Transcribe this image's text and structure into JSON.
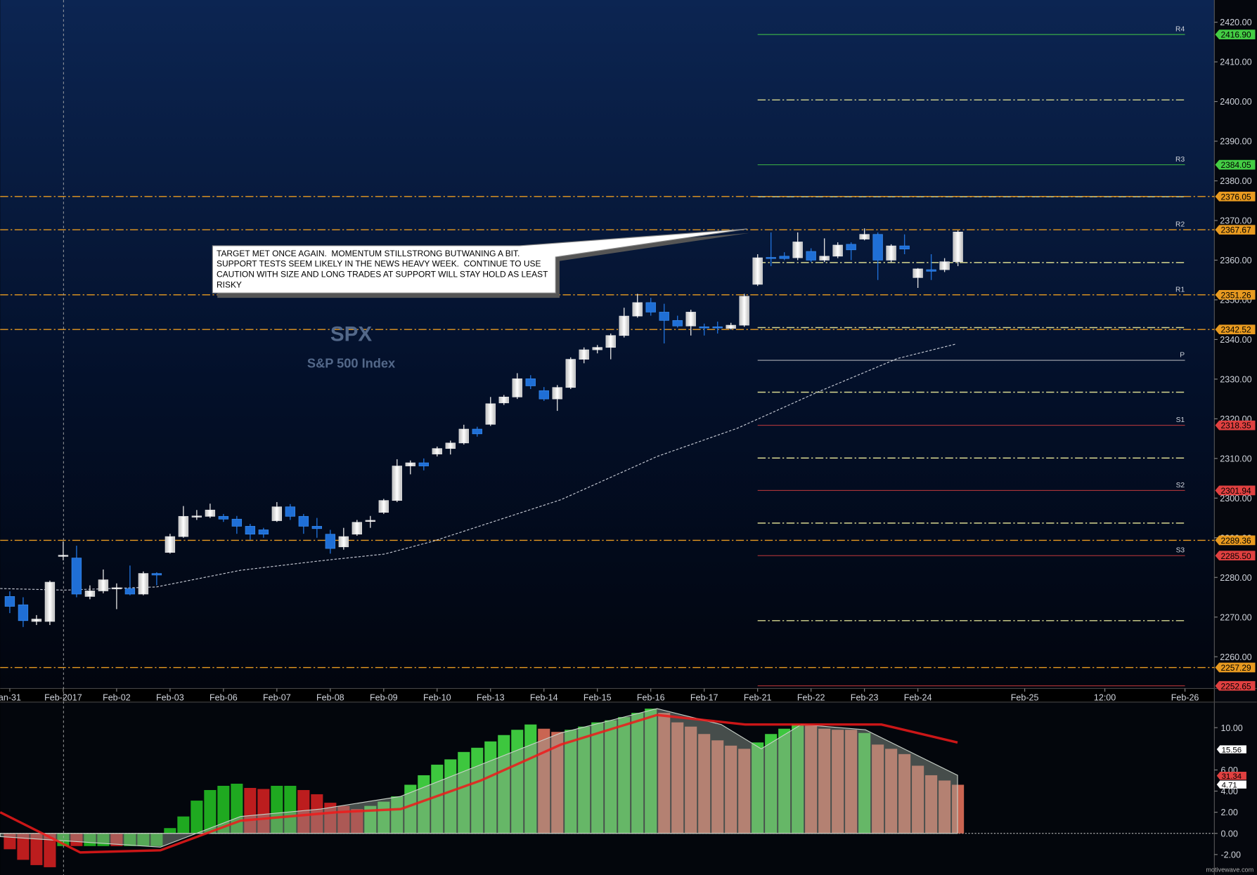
{
  "chart_data": [
    {
      "type": "candlestick",
      "title": "SPX",
      "subtitle": "S&P 500 Index",
      "annotation": [
        "TARGET MET ONCE AGAIN.  MOMENTUM STILLSTRONG BUTWANING A BIT.",
        "SUPPORT TESTS SEEM LIKELY IN THE NEWS HEAVY WEEK.  CONTINUE TO USE",
        "CAUTION WITH SIZE AND LONG TRADES AT SUPPORT WILL STAY HOLD AS LEAST",
        "RISKY"
      ],
      "watermark": "motivewave.com",
      "up_color": "#e6e6e6",
      "down_color": "#1f6fd6",
      "xlim": [
        -0.72,
        90.2
      ],
      "xticks": [
        {
          "value": 0,
          "label": "an-31"
        },
        {
          "value": 4,
          "label": "Feb-2017"
        },
        {
          "value": 8,
          "label": "Feb-02"
        },
        {
          "value": 12,
          "label": "Feb-03"
        },
        {
          "value": 16,
          "label": "Feb-06"
        },
        {
          "value": 20,
          "label": "Feb-07"
        },
        {
          "value": 24,
          "label": "Feb-08"
        },
        {
          "value": 28,
          "label": "Feb-09"
        },
        {
          "value": 32,
          "label": "Feb-10"
        },
        {
          "value": 36,
          "label": "Feb-13"
        },
        {
          "value": 40,
          "label": "Feb-14"
        },
        {
          "value": 44,
          "label": "Feb-15"
        },
        {
          "value": 48,
          "label": "Feb-16"
        },
        {
          "value": 52,
          "label": "Feb-17"
        },
        {
          "value": 56,
          "label": "Feb-21"
        },
        {
          "value": 60,
          "label": "Feb-22"
        },
        {
          "value": 64,
          "label": "Feb-23"
        },
        {
          "value": 68,
          "label": "Feb-24"
        },
        {
          "value": 76,
          "label": "Feb-25"
        },
        {
          "value": 82,
          "label": "12:00"
        },
        {
          "value": 88,
          "label": "Feb-26"
        }
      ],
      "ylim": [
        2252,
        2425.6
      ],
      "yticks": [
        {
          "value": 2260,
          "label": "2260.00"
        },
        {
          "value": 2270,
          "label": "2270.00"
        },
        {
          "value": 2280,
          "label": "2280.00"
        },
        {
          "value": 2290,
          "label": "2290.00"
        },
        {
          "value": 2300,
          "label": "2300.00"
        },
        {
          "value": 2310,
          "label": "2310.00"
        },
        {
          "value": 2320,
          "label": "2320.00"
        },
        {
          "value": 2330,
          "label": "2330.00"
        },
        {
          "value": 2340,
          "label": "2340.00"
        },
        {
          "value": 2350,
          "label": "2350.00"
        },
        {
          "value": 2360,
          "label": "2360.00"
        },
        {
          "value": 2370,
          "label": "2370.00"
        },
        {
          "value": 2380,
          "label": "2380.00"
        },
        {
          "value": 2390,
          "label": "2390.00"
        },
        {
          "value": 2400,
          "label": "2400.00"
        },
        {
          "value": 2410,
          "label": "2410.00"
        },
        {
          "value": 2420,
          "label": "2420.00"
        }
      ],
      "open": [
        2275.2,
        2273.1,
        2268.9,
        2268.9,
        2285.3,
        2284.9,
        2275.2,
        2276.6,
        2277.2,
        2277.2,
        2275.8,
        2281.0,
        2286.3,
        2290.3,
        2295.2,
        2295.4,
        2295.4,
        2294.7,
        2292.9,
        2292.0,
        2294.3,
        2297.8,
        2295.4,
        2292.9,
        2290.9,
        2287.7,
        2290.9,
        2294.2,
        2296.4,
        2299.4,
        2308.1,
        2308.9,
        2311.1,
        2312.5,
        2313.9,
        2317.4,
        2318.6,
        2324.0,
        2325.5,
        2330.1,
        2327.1,
        2325.0,
        2327.9,
        2335.0,
        2337.4,
        2338.0,
        2341.0,
        2345.9,
        2349.3,
        2346.9,
        2344.8,
        2343.4,
        2343.2,
        2343.2,
        2342.8,
        2343.6,
        2353.9,
        2360.7,
        2361.0,
        2360.6,
        2362.2,
        2360.0,
        2361.0,
        2364.0,
        2365.3,
        2366.5,
        2360.0,
        2363.6,
        2355.6,
        2357.6,
        2357.6,
        2359.6
      ],
      "high": [
        2276.5,
        2275.0,
        2270.5,
        2279.2,
        2289.1,
        2288.0,
        2278.0,
        2282.0,
        2278.5,
        2283.0,
        2281.5,
        2281.3,
        2291.0,
        2298.0,
        2297.0,
        2298.6,
        2296.0,
        2295.5,
        2293.5,
        2292.5,
        2299.0,
        2298.5,
        2296.0,
        2295.0,
        2292.0,
        2292.5,
        2294.5,
        2295.5,
        2299.8,
        2309.8,
        2309.5,
        2310.0,
        2313.0,
        2314.5,
        2318.5,
        2318.0,
        2325.5,
        2326.0,
        2331.5,
        2331.0,
        2328.0,
        2328.5,
        2335.5,
        2338.0,
        2338.6,
        2341.5,
        2348.0,
        2351.5,
        2350.5,
        2349.0,
        2346.0,
        2347.5,
        2344.0,
        2344.5,
        2344.2,
        2351.5,
        2361.5,
        2367.0,
        2362.0,
        2367.0,
        2363.0,
        2365.5,
        2364.5,
        2364.5,
        2368.0,
        2367.0,
        2364.0,
        2366.5,
        2358.0,
        2361.5,
        2360.5,
        2367.5
      ],
      "low": [
        2271.0,
        2267.5,
        2268.0,
        2268.0,
        2284.3,
        2275.0,
        2274.5,
        2276.0,
        2272.0,
        2275.5,
        2275.5,
        2278.0,
        2286.0,
        2290.0,
        2294.5,
        2295.0,
        2294.0,
        2291.0,
        2289.5,
        2290.0,
        2294.0,
        2294.5,
        2291.0,
        2290.0,
        2286.0,
        2287.0,
        2290.5,
        2292.5,
        2296.0,
        2299.0,
        2306.0,
        2307.0,
        2310.5,
        2311.0,
        2313.5,
        2315.5,
        2318.2,
        2323.5,
        2325.0,
        2327.5,
        2324.5,
        2322.0,
        2327.5,
        2334.0,
        2336.5,
        2335.0,
        2340.5,
        2345.5,
        2346.0,
        2339.0,
        2343.0,
        2341.0,
        2341.0,
        2341.5,
        2342.5,
        2343.2,
        2353.5,
        2358.5,
        2360.0,
        2360.0,
        2359.5,
        2359.5,
        2360.5,
        2360.0,
        2365.0,
        2355.0,
        2359.5,
        2361.5,
        2353.0,
        2355.0,
        2357.0,
        2358.5
      ],
      "close": [
        2272.7,
        2269.1,
        2269.5,
        2278.8,
        2285.6,
        2275.8,
        2276.6,
        2279.4,
        2277.4,
        2275.8,
        2281.0,
        2280.6,
        2290.3,
        2295.4,
        2295.5,
        2297.0,
        2294.7,
        2292.9,
        2290.9,
        2290.9,
        2297.8,
        2295.4,
        2292.9,
        2292.3,
        2287.3,
        2290.3,
        2293.9,
        2294.4,
        2299.4,
        2308.1,
        2308.9,
        2308.1,
        2312.5,
        2313.9,
        2317.4,
        2316.2,
        2323.8,
        2325.5,
        2330.1,
        2328.3,
        2325.0,
        2327.9,
        2335.0,
        2337.4,
        2338.0,
        2341.0,
        2345.9,
        2349.3,
        2346.9,
        2344.8,
        2343.4,
        2346.9,
        2343.0,
        2343.0,
        2343.6,
        2350.9,
        2360.6,
        2360.5,
        2360.4,
        2364.6,
        2360.0,
        2361.0,
        2363.8,
        2362.6,
        2366.5,
        2360.0,
        2363.6,
        2362.8,
        2357.8,
        2357.2,
        2359.6,
        2367.1
      ],
      "overlay": {
        "color": "#c8ccd6",
        "x": [
          -0.72,
          4.08,
          10.98,
          17.28,
          23.28,
          28.07,
          31.67,
          41.27,
          48.47,
          54.47,
          60.47,
          66.47,
          70.79
        ],
        "values": [
          2277.2,
          2276.8,
          2277.6,
          2281.8,
          2284.2,
          2285.9,
          2289.1,
          2299.6,
          2310.5,
          2317.6,
          2326.7,
          2335.2,
          2338.8
        ]
      },
      "levels": [
        {
          "name": "R4",
          "value": 2416.9,
          "label": "2416.90",
          "color": "#44cc44",
          "span": "pivot"
        },
        {
          "name": "R3",
          "value": 2384.05,
          "label": "2384.05",
          "color": "#44cc44",
          "span": "pivot"
        },
        {
          "value": 2376.05,
          "label": "2376.05",
          "color": "#e89a20",
          "span": "full"
        },
        {
          "name": "R2",
          "value": 2367.67,
          "label": "2367.67",
          "color": "#e89a20",
          "span": "full"
        },
        {
          "name": "R1",
          "value": 2351.26,
          "label": "2351.26",
          "color": "#e89a20",
          "span": "full"
        },
        {
          "value": 2342.52,
          "label": "2342.52",
          "color": "#e89a20",
          "span": "full"
        },
        {
          "name": "P",
          "value": 2334.75,
          "color": "#d8d8d8",
          "span": "pivot"
        },
        {
          "name": "S1",
          "value": 2318.35,
          "label": "2318.35",
          "color": "#e04040",
          "span": "pivot"
        },
        {
          "name": "S2",
          "value": 2301.94,
          "label": "2301.94",
          "color": "#e04040",
          "span": "pivot"
        },
        {
          "value": 2289.36,
          "label": "2289.36",
          "color": "#e89a20",
          "span": "full"
        },
        {
          "name": "S3",
          "value": 2285.5,
          "label": "2285.50",
          "color": "#e04040",
          "span": "pivot"
        },
        {
          "value": 2257.29,
          "label": "2257.29",
          "color": "#e89a20",
          "span": "full"
        },
        {
          "value": 2252.65,
          "label": "2252.65",
          "color": "#e04040",
          "span": "pivot"
        }
      ],
      "midlines": {
        "color": "#d8d890",
        "values": [
          2400.4,
          2376,
          2359.4,
          2343,
          2326.7,
          2310.1,
          2293.7,
          2269.1
        ]
      }
    },
    {
      "type": "bar",
      "ylim": [
        -3.33,
        12.42
      ],
      "yticks": [
        {
          "value": 10,
          "label": "10.00"
        },
        {
          "value": 6,
          "label": "6.00"
        },
        {
          "value": 4,
          "label": "4.00"
        },
        {
          "value": 2,
          "label": "2.00"
        },
        {
          "value": 0,
          "label": "0.00"
        },
        {
          "value": -2,
          "label": "-2.00"
        }
      ],
      "values": [
        -1.5,
        -2.5,
        -3.0,
        -3.2,
        -1.2,
        -1.2,
        -1.2,
        -1.2,
        -1.2,
        -1.2,
        -1.2,
        -1.2,
        0.5,
        1.6,
        3.1,
        4.1,
        4.5,
        4.7,
        4.3,
        4.2,
        4.5,
        4.5,
        4.1,
        3.7,
        2.9,
        2.6,
        2.3,
        2.6,
        3.0,
        3.5,
        4.6,
        5.5,
        6.5,
        7.0,
        7.7,
        8.1,
        8.7,
        9.3,
        9.8,
        10.3,
        9.9,
        9.6,
        9.8,
        10.1,
        10.5,
        10.7,
        11.0,
        11.4,
        11.8,
        11.4,
        10.5,
        10.1,
        9.4,
        8.8,
        8.3,
        8.0,
        8.6,
        9.4,
        9.9,
        10.3,
        10.2,
        9.9,
        9.8,
        9.8,
        9.5,
        8.4,
        8.0,
        7.5,
        6.4,
        5.5,
        5.0,
        4.6
      ],
      "colors": [
        "#d02020",
        "#d02020",
        "#d02020",
        "#d02020",
        "#22bb22",
        "#d02020",
        "#22bb22",
        "#22bb22",
        "#d02020",
        "#22bb22",
        "#22bb22",
        "#22bb22",
        "#22bb22",
        "#22bb22",
        "#22bb22",
        "#22bb22",
        "#22bb22",
        "#22bb22",
        "#d02020",
        "#d02020",
        "#22bb22",
        "#22bb22",
        "#d02020",
        "#d02020",
        "#d02020",
        "#d02020",
        "#d02020",
        "#44dd44",
        "#44dd44",
        "#44dd44",
        "#44dd44",
        "#44dd44",
        "#44dd44",
        "#44dd44",
        "#44dd44",
        "#44dd44",
        "#44dd44",
        "#44dd44",
        "#44dd44",
        "#44dd44",
        "#e0705a",
        "#e0705a",
        "#44dd44",
        "#44dd44",
        "#44dd44",
        "#44dd44",
        "#44dd44",
        "#44dd44",
        "#44dd44",
        "#e0705a",
        "#e0705a",
        "#e0705a",
        "#e0705a",
        "#e0705a",
        "#e0705a",
        "#e0705a",
        "#44dd44",
        "#44dd44",
        "#44dd44",
        "#44dd44",
        "#e0705a",
        "#e0705a",
        "#e0705a",
        "#e0705a",
        "#44dd44",
        "#e0705a",
        "#e0705a",
        "#e0705a",
        "#e0705a",
        "#e0705a",
        "#e0705a",
        "#e0705a"
      ],
      "smooth": {
        "color": "#9aa39a",
        "x": [
          -0.72,
          11.28,
          17.28,
          23.28,
          29.27,
          35.27,
          41.27,
          48.47,
          53.27,
          56.27,
          59.27,
          64.07,
          70.97
        ],
        "values": [
          -0.3,
          -1.3,
          1.6,
          2.3,
          3.5,
          6.5,
          9.5,
          11.8,
          10.3,
          8.0,
          10.3,
          9.8,
          5.5
        ]
      },
      "signal": {
        "color": "#ee1a1a",
        "x": [
          -0.72,
          5.28,
          11.28,
          17.28,
          24.48,
          29.27,
          35.27,
          41.27,
          48.47,
          55.07,
          59.27,
          65.27,
          70.97
        ],
        "values": [
          2.0,
          -1.8,
          -1.6,
          1.2,
          2.0,
          2.3,
          5.0,
          8.4,
          11.2,
          10.3,
          10.3,
          10.3,
          8.6
        ]
      },
      "tags": [
        {
          "label": "15.56",
          "color": "#ffffff"
        },
        {
          "label": "31.34",
          "color": "#e04040"
        },
        {
          "label": "4.71",
          "color": "#ffffff"
        }
      ]
    }
  ]
}
